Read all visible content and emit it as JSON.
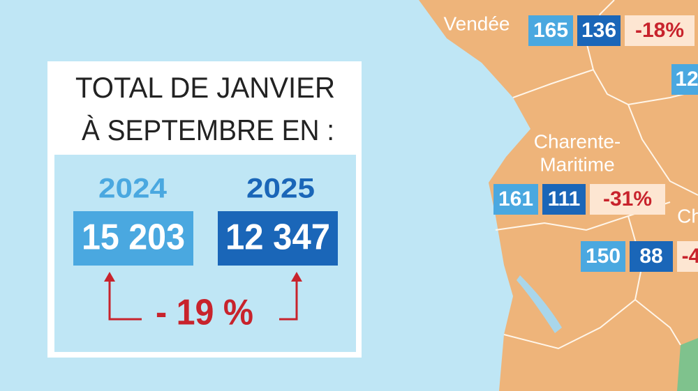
{
  "summary": {
    "title_lines": [
      "TOTAL DE JANVIER",
      "À SEPTEMBRE EN :"
    ],
    "years": [
      {
        "year": "2024",
        "total": "15 203"
      },
      {
        "year": "2025",
        "total": "12 347"
      }
    ],
    "change": "- 19 %"
  },
  "departments": [
    {
      "name": [
        "Vendée"
      ],
      "v2024": "165",
      "v2025": "136",
      "change": "-18%"
    },
    {
      "v2024": "12"
    },
    {
      "name": [
        "Charente-",
        "Maritime"
      ],
      "v2024": "161",
      "v2025": "111",
      "change": "-31%"
    },
    {
      "name": [
        "Ch"
      ]
    },
    {
      "v2024": "150",
      "v2025": "88",
      "change": "-4"
    }
  ]
}
